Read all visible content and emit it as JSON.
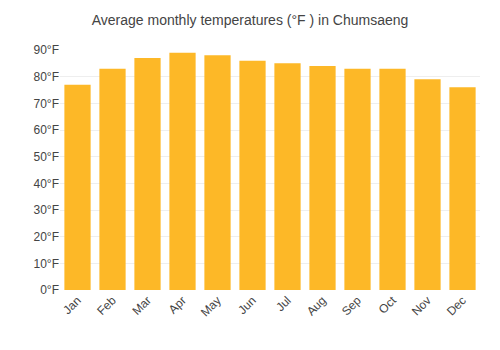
{
  "chart_data": {
    "type": "bar",
    "title": "Average monthly temperatures (°F ) in Chumsaeng",
    "categories": [
      "Jan",
      "Feb",
      "Mar",
      "Apr",
      "May",
      "Jun",
      "Jul",
      "Aug",
      "Sep",
      "Oct",
      "Nov",
      "Dec"
    ],
    "values": [
      77,
      83,
      87,
      89,
      88,
      86,
      85,
      84,
      83,
      83,
      79,
      76
    ],
    "color": "#FDB827",
    "ylim": [
      0,
      90
    ],
    "yticks": [
      {
        "value": 0,
        "label": "0°F"
      },
      {
        "value": 10,
        "label": "10°F"
      },
      {
        "value": 20,
        "label": "20°F"
      },
      {
        "value": 30,
        "label": "30°F"
      },
      {
        "value": 40,
        "label": "40°F"
      },
      {
        "value": 50,
        "label": "50°F"
      },
      {
        "value": 60,
        "label": "60°F"
      },
      {
        "value": 70,
        "label": "70°F"
      },
      {
        "value": 80,
        "label": "80°F"
      },
      {
        "value": 90,
        "label": "90°F"
      }
    ],
    "grid": true
  }
}
